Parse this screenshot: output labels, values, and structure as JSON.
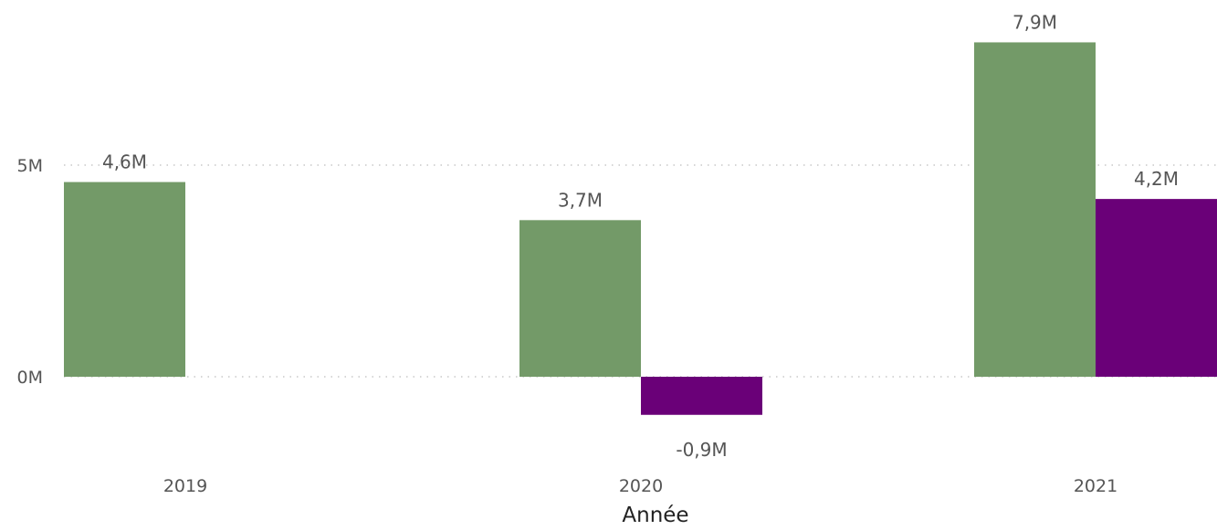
{
  "chart_data": {
    "type": "bar",
    "categories": [
      "2019",
      "2020",
      "2021"
    ],
    "series": [
      {
        "color": "#739a68",
        "values": [
          4.6,
          3.7,
          7.9
        ],
        "labels": [
          "4,6M",
          "3,7M",
          "7,9M"
        ]
      },
      {
        "color": "#6a0078",
        "values": [
          null,
          -0.9,
          4.2
        ],
        "labels": [
          "",
          "-0,9M",
          "4,2M"
        ]
      }
    ],
    "units": "M",
    "y_ticks": [
      0,
      5
    ],
    "y_tick_labels": [
      "0M",
      "5M"
    ],
    "xlabel": "Année",
    "ylabel": "",
    "grid": "dotted horizontal"
  }
}
